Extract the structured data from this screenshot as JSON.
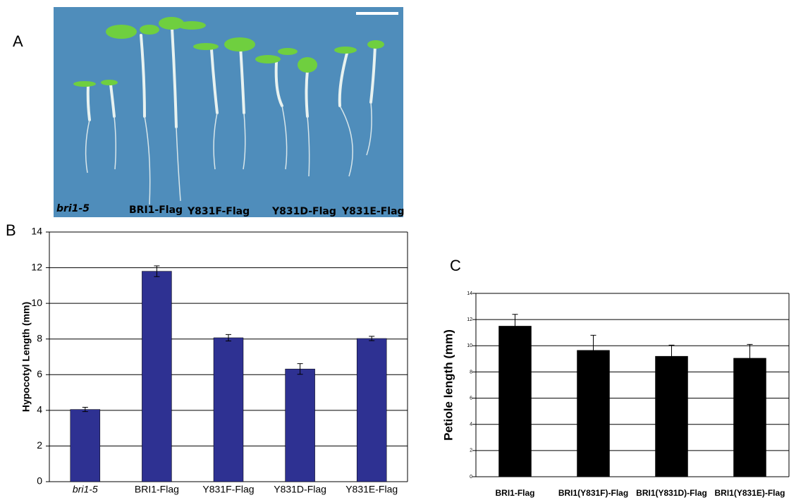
{
  "panel_labels": [
    "A",
    "B",
    "C"
  ],
  "photo_labels": [
    "bri1-5",
    "BRI1-Flag",
    "Y831F-Flag",
    "Y831D-Flag",
    "Y831E-Flag"
  ],
  "chart_data": [
    {
      "type": "bar",
      "y_label": "Hypocotyl Length (mm)",
      "categories": [
        "bri1-5",
        "BRI1-Flag",
        "Y831F-Flag",
        "Y831D-Flag",
        "Y831E-Flag"
      ],
      "values": [
        4.05,
        11.8,
        8.07,
        6.32,
        8.03
      ],
      "errors": [
        0.12,
        0.3,
        0.18,
        0.3,
        0.12
      ],
      "color": "#2e3192",
      "ylim": [
        0,
        14
      ],
      "yticks": [
        0,
        2,
        4,
        6,
        8,
        10,
        12,
        14
      ],
      "grid": true
    },
    {
      "type": "bar",
      "y_label": "Petiole length (mm)",
      "categories": [
        "BRI1-Flag",
        "BRI1(Y831F)-Flag",
        "BRI1(Y831D)-Flag",
        "BRI1(Y831E)-Flag"
      ],
      "values": [
        11.5,
        9.65,
        9.2,
        9.05
      ],
      "errors": [
        0.9,
        1.15,
        0.85,
        1.05
      ],
      "color": "#000000",
      "ylim": [
        0,
        14
      ],
      "yticks": [
        0,
        2,
        4,
        6,
        8,
        10,
        12,
        14
      ],
      "grid": true
    }
  ]
}
